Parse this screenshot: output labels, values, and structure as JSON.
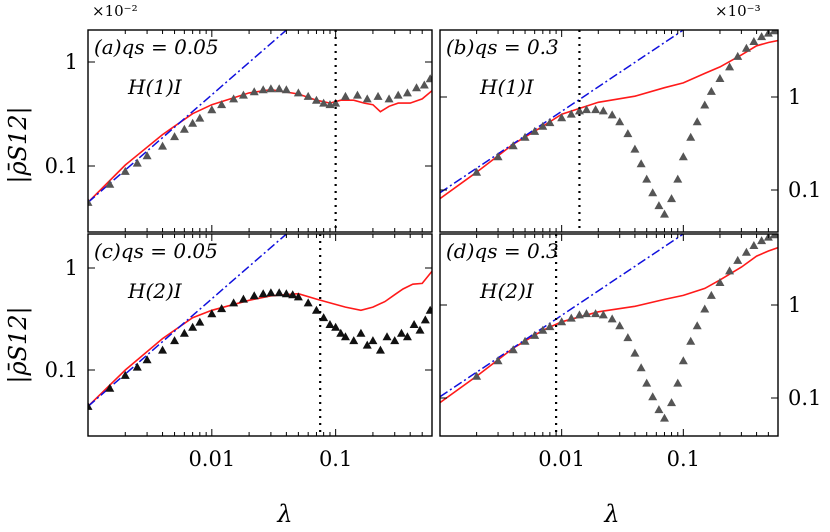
{
  "figure": {
    "x_axis_label": "λ",
    "y_axis_label": "|ρ̄S12|",
    "multipliers": [
      "×10⁻²",
      "×10⁻³"
    ]
  },
  "chart_data": [
    {
      "type": "line",
      "panel": "a",
      "annotation": "(a)qs = 0.05",
      "hamiltonian": "H(1)I",
      "x_scale": "log",
      "y_scale": "log",
      "xlim": [
        0.001,
        0.6
      ],
      "ylim": [
        0.0045,
        2.0
      ],
      "x_ticks": [
        "0.01",
        "0.1"
      ],
      "y_ticks": [
        "0.1",
        "1"
      ],
      "y_multiplier": "×10⁻²",
      "vline_x": 0.1,
      "series": [
        {
          "style": "red-solid",
          "x": [
            0.001,
            0.002,
            0.004,
            0.007,
            0.01,
            0.02,
            0.03,
            0.05,
            0.07,
            0.09,
            0.11,
            0.14,
            0.17,
            0.2,
            0.23,
            0.27,
            0.32,
            0.4,
            0.5,
            0.6
          ],
          "y": [
            0.011,
            0.034,
            0.085,
            0.16,
            0.21,
            0.3,
            0.33,
            0.29,
            0.24,
            0.22,
            0.24,
            0.24,
            0.22,
            0.21,
            0.17,
            0.2,
            0.22,
            0.22,
            0.25,
            0.32
          ]
        },
        {
          "style": "blue-dashdot",
          "x": [
            0.001,
            0.04
          ],
          "y": [
            0.011,
            2.0
          ]
        },
        {
          "style": "triangles",
          "x": [
            0.001,
            0.0015,
            0.002,
            0.0025,
            0.003,
            0.004,
            0.005,
            0.006,
            0.007,
            0.008,
            0.01,
            0.012,
            0.015,
            0.018,
            0.022,
            0.026,
            0.03,
            0.035,
            0.04,
            0.05,
            0.06,
            0.07,
            0.08,
            0.09,
            0.1,
            0.12,
            0.15,
            0.18,
            0.22,
            0.27,
            0.32,
            0.38,
            0.45,
            0.52,
            0.58
          ],
          "y": [
            0.011,
            0.019,
            0.028,
            0.036,
            0.045,
            0.06,
            0.08,
            0.1,
            0.12,
            0.14,
            0.18,
            0.21,
            0.25,
            0.28,
            0.31,
            0.33,
            0.34,
            0.34,
            0.33,
            0.3,
            0.27,
            0.24,
            0.22,
            0.21,
            0.22,
            0.27,
            0.28,
            0.25,
            0.27,
            0.25,
            0.28,
            0.3,
            0.35,
            0.38,
            0.46
          ]
        }
      ]
    },
    {
      "type": "line",
      "panel": "b",
      "annotation": "(b)qs = 0.3",
      "hamiltonian": "H(1)I",
      "x_scale": "log",
      "y_scale": "log",
      "xlim": [
        0.001,
        0.6
      ],
      "ylim": [
        0.025,
        5.0
      ],
      "x_ticks": [
        "0.01",
        "0.1"
      ],
      "y_ticks": [
        "0.1",
        "1"
      ],
      "y_multiplier": "×10⁻³",
      "vline_x": 0.014,
      "series": [
        {
          "style": "red-solid",
          "x": [
            0.001,
            0.002,
            0.004,
            0.007,
            0.01,
            0.02,
            0.04,
            0.07,
            0.1,
            0.15,
            0.2,
            0.3,
            0.4,
            0.5,
            0.6
          ],
          "y": [
            0.06,
            0.12,
            0.25,
            0.4,
            0.55,
            0.75,
            0.88,
            1.1,
            1.25,
            1.6,
            1.9,
            2.6,
            3.3,
            3.6,
            3.8
          ]
        },
        {
          "style": "blue-dashdot",
          "x": [
            0.001,
            0.1
          ],
          "y": [
            0.07,
            5.0
          ]
        },
        {
          "style": "triangles",
          "x": [
            0.002,
            0.003,
            0.004,
            0.005,
            0.006,
            0.007,
            0.008,
            0.01,
            0.012,
            0.014,
            0.016,
            0.019,
            0.022,
            0.026,
            0.03,
            0.035,
            0.04,
            0.045,
            0.05,
            0.056,
            0.063,
            0.07,
            0.08,
            0.09,
            0.1,
            0.115,
            0.13,
            0.15,
            0.17,
            0.2,
            0.24,
            0.28,
            0.33,
            0.38,
            0.44,
            0.5,
            0.56,
            0.6
          ],
          "y": [
            0.12,
            0.18,
            0.24,
            0.3,
            0.35,
            0.4,
            0.44,
            0.5,
            0.55,
            0.6,
            0.62,
            0.62,
            0.6,
            0.54,
            0.45,
            0.33,
            0.22,
            0.15,
            0.1,
            0.07,
            0.05,
            0.04,
            0.06,
            0.1,
            0.18,
            0.3,
            0.45,
            0.7,
            1.0,
            1.4,
            1.9,
            2.5,
            3.1,
            3.7,
            4.2,
            4.6,
            4.9,
            5.0
          ]
        }
      ]
    },
    {
      "type": "line",
      "panel": "c",
      "annotation": "(c)qs = 0.05",
      "hamiltonian": "H(2)I",
      "x_scale": "log",
      "y_scale": "log",
      "xlim": [
        0.001,
        0.6
      ],
      "ylim": [
        0.0045,
        2.0
      ],
      "x_ticks": [
        "0.01",
        "0.1"
      ],
      "y_ticks": [
        "0.1",
        "1"
      ],
      "vline_x": 0.075,
      "series": [
        {
          "style": "red-solid",
          "x": [
            0.001,
            0.002,
            0.004,
            0.007,
            0.01,
            0.02,
            0.03,
            0.05,
            0.07,
            0.09,
            0.12,
            0.16,
            0.2,
            0.25,
            0.3,
            0.35,
            0.42,
            0.5,
            0.6
          ],
          "y": [
            0.011,
            0.033,
            0.085,
            0.16,
            0.2,
            0.27,
            0.31,
            0.33,
            0.28,
            0.25,
            0.22,
            0.2,
            0.22,
            0.26,
            0.32,
            0.38,
            0.44,
            0.45,
            0.65
          ]
        },
        {
          "style": "blue-dashdot",
          "x": [
            0.001,
            0.04
          ],
          "y": [
            0.011,
            2.0
          ]
        },
        {
          "style": "triangles",
          "x": [
            0.001,
            0.0015,
            0.002,
            0.0025,
            0.003,
            0.004,
            0.005,
            0.006,
            0.007,
            0.008,
            0.01,
            0.012,
            0.015,
            0.018,
            0.022,
            0.026,
            0.03,
            0.035,
            0.04,
            0.045,
            0.05,
            0.06,
            0.07,
            0.08,
            0.09,
            0.1,
            0.11,
            0.12,
            0.14,
            0.16,
            0.18,
            0.2,
            0.23,
            0.26,
            0.3,
            0.34,
            0.38,
            0.43,
            0.48,
            0.53,
            0.58
          ],
          "y": [
            0.011,
            0.019,
            0.028,
            0.036,
            0.045,
            0.06,
            0.08,
            0.1,
            0.12,
            0.14,
            0.18,
            0.21,
            0.25,
            0.28,
            0.31,
            0.33,
            0.34,
            0.34,
            0.33,
            0.32,
            0.3,
            0.25,
            0.2,
            0.16,
            0.13,
            0.12,
            0.1,
            0.09,
            0.08,
            0.1,
            0.07,
            0.08,
            0.06,
            0.09,
            0.08,
            0.1,
            0.09,
            0.13,
            0.11,
            0.15,
            0.2
          ]
        }
      ]
    },
    {
      "type": "line",
      "panel": "d",
      "annotation": "(d)qs = 0.3",
      "hamiltonian": "H(2)I",
      "x_scale": "log",
      "y_scale": "log",
      "xlim": [
        0.001,
        0.6
      ],
      "ylim": [
        0.025,
        5.0
      ],
      "x_ticks": [
        "0.01",
        "0.1"
      ],
      "y_ticks": [
        "0.1",
        "1"
      ],
      "vline_x": 0.009,
      "series": [
        {
          "style": "red-solid",
          "x": [
            0.001,
            0.002,
            0.004,
            0.007,
            0.01,
            0.02,
            0.04,
            0.07,
            0.1,
            0.15,
            0.2,
            0.3,
            0.4,
            0.5,
            0.6
          ],
          "y": [
            0.06,
            0.12,
            0.25,
            0.4,
            0.5,
            0.65,
            0.75,
            0.9,
            1.0,
            1.2,
            1.5,
            2.1,
            2.8,
            3.2,
            3.5
          ]
        },
        {
          "style": "blue-dashdot",
          "x": [
            0.001,
            0.1
          ],
          "y": [
            0.07,
            5.0
          ]
        },
        {
          "style": "triangles",
          "x": [
            0.002,
            0.003,
            0.004,
            0.005,
            0.006,
            0.007,
            0.008,
            0.01,
            0.012,
            0.014,
            0.016,
            0.019,
            0.022,
            0.026,
            0.03,
            0.035,
            0.04,
            0.045,
            0.05,
            0.056,
            0.063,
            0.07,
            0.08,
            0.09,
            0.1,
            0.115,
            0.13,
            0.15,
            0.17,
            0.2,
            0.24,
            0.28,
            0.33,
            0.38,
            0.44,
            0.5,
            0.56,
            0.6
          ],
          "y": [
            0.12,
            0.18,
            0.24,
            0.3,
            0.35,
            0.4,
            0.44,
            0.5,
            0.55,
            0.6,
            0.62,
            0.62,
            0.6,
            0.54,
            0.45,
            0.33,
            0.22,
            0.15,
            0.1,
            0.07,
            0.05,
            0.04,
            0.06,
            0.1,
            0.18,
            0.3,
            0.45,
            0.7,
            1.0,
            1.4,
            1.9,
            2.5,
            3.1,
            3.7,
            4.2,
            4.6,
            4.9,
            5.0
          ]
        }
      ]
    }
  ]
}
